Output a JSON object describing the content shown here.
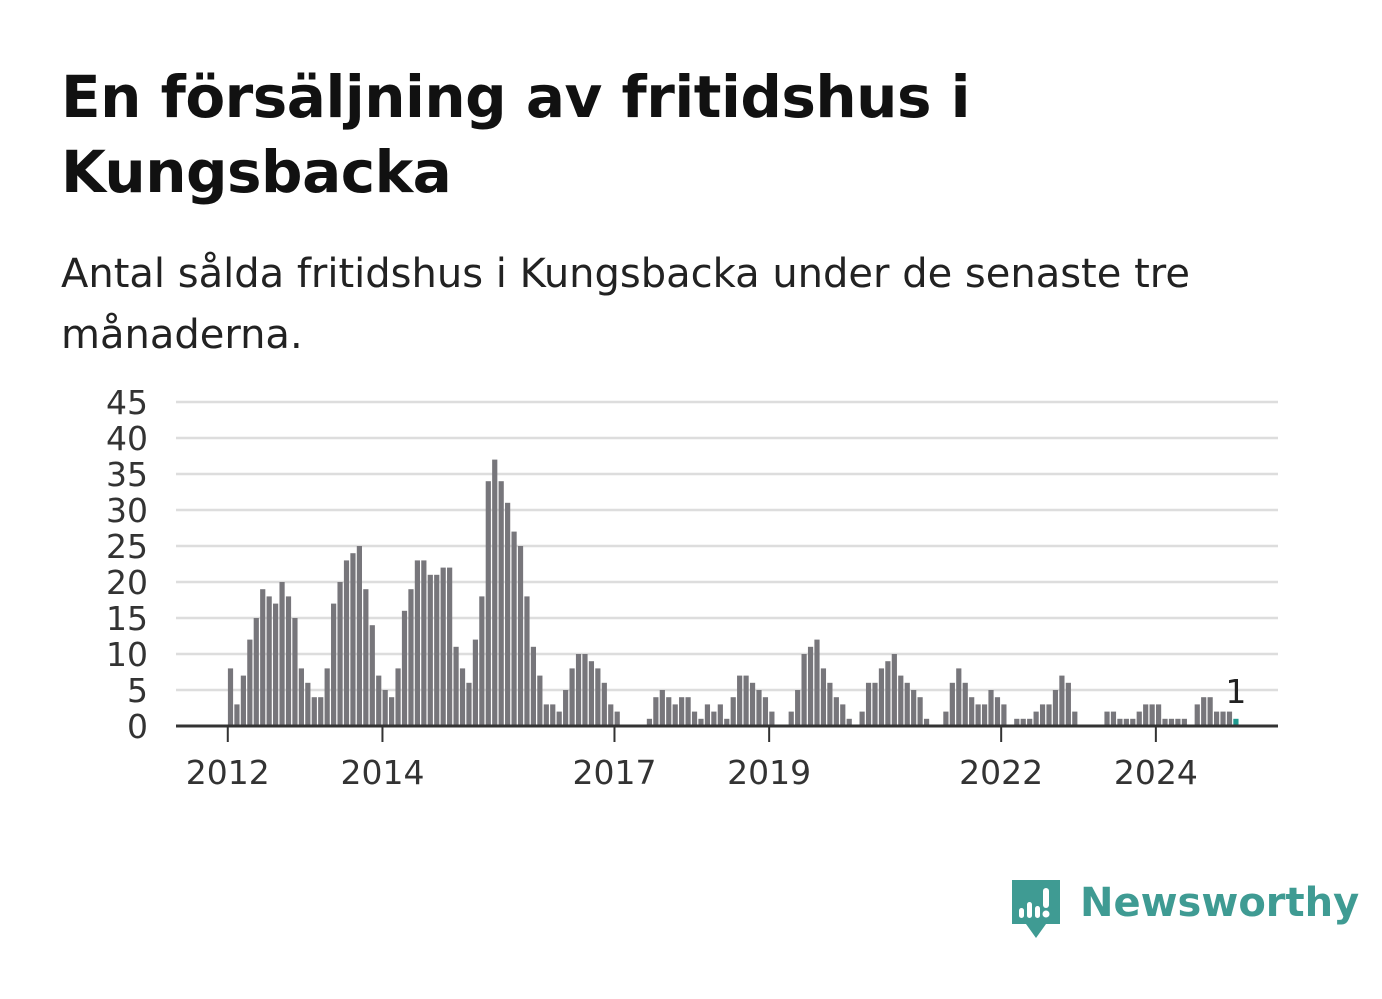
{
  "title": "En försäljning av fritidshus i Kungsbacka",
  "subtitle": "Antal sålda fritidshus i Kungsbacka under de senaste tre månaderna.",
  "logo": {
    "text": "Newsworthy",
    "color": "#3f9b93",
    "icon": "newsworthy-logo-icon"
  },
  "chart_data": {
    "type": "bar",
    "title": "",
    "xlabel": "",
    "ylabel": "",
    "ylim": [
      0,
      45
    ],
    "yticks": [
      0,
      5,
      10,
      15,
      20,
      25,
      30,
      35,
      40,
      45
    ],
    "xticks": [
      "2012",
      "2014",
      "2017",
      "2019",
      "2022",
      "2024"
    ],
    "grid": true,
    "bar_color": "#77767b",
    "highlight_color": "#1f9a8f",
    "annotation": "1",
    "categories": [
      "2012-01",
      "2012-02",
      "2012-03",
      "2012-04",
      "2012-05",
      "2012-06",
      "2012-07",
      "2012-08",
      "2012-09",
      "2012-10",
      "2012-11",
      "2012-12",
      "2013-01",
      "2013-02",
      "2013-03",
      "2013-04",
      "2013-05",
      "2013-06",
      "2013-07",
      "2013-08",
      "2013-09",
      "2013-10",
      "2013-11",
      "2013-12",
      "2014-01",
      "2014-02",
      "2014-03",
      "2014-04",
      "2014-05",
      "2014-06",
      "2014-07",
      "2014-08",
      "2014-09",
      "2014-10",
      "2014-11",
      "2014-12",
      "2015-01",
      "2015-02",
      "2015-03",
      "2015-04",
      "2015-05",
      "2015-06",
      "2015-07",
      "2015-08",
      "2015-09",
      "2015-10",
      "2015-11",
      "2015-12",
      "2016-01",
      "2016-02",
      "2016-03",
      "2016-04",
      "2016-05",
      "2016-06",
      "2016-07",
      "2016-08",
      "2016-09",
      "2016-10",
      "2016-11",
      "2016-12",
      "2017-01",
      "2017-02",
      "2017-03",
      "2017-04",
      "2017-05",
      "2017-06",
      "2017-07",
      "2017-08",
      "2017-09",
      "2017-10",
      "2017-11",
      "2017-12",
      "2018-01",
      "2018-02",
      "2018-03",
      "2018-04",
      "2018-05",
      "2018-06",
      "2018-07",
      "2018-08",
      "2018-09",
      "2018-10",
      "2018-11",
      "2018-12",
      "2019-01",
      "2019-02",
      "2019-03",
      "2019-04",
      "2019-05",
      "2019-06",
      "2019-07",
      "2019-08",
      "2019-09",
      "2019-10",
      "2019-11",
      "2019-12",
      "2020-01",
      "2020-02",
      "2020-03",
      "2020-04",
      "2020-05",
      "2020-06",
      "2020-07",
      "2020-08",
      "2020-09",
      "2020-10",
      "2020-11",
      "2020-12",
      "2021-01",
      "2021-02",
      "2021-03",
      "2021-04",
      "2021-05",
      "2021-06",
      "2021-07",
      "2021-08",
      "2021-09",
      "2021-10",
      "2021-11",
      "2021-12",
      "2022-01",
      "2022-02",
      "2022-03",
      "2022-04",
      "2022-05",
      "2022-06",
      "2022-07",
      "2022-08",
      "2022-09",
      "2022-10",
      "2022-11",
      "2022-12",
      "2023-01",
      "2023-02",
      "2023-03",
      "2023-04",
      "2023-05",
      "2023-06",
      "2023-07",
      "2023-08",
      "2023-09",
      "2023-10",
      "2023-11",
      "2023-12",
      "2024-01",
      "2024-02",
      "2024-03",
      "2024-04",
      "2024-05",
      "2024-06",
      "2024-07",
      "2024-08",
      "2024-09",
      "2024-10",
      "2024-11",
      "2024-12",
      "2025-01"
    ],
    "values": [
      8,
      3,
      7,
      12,
      15,
      19,
      18,
      17,
      20,
      18,
      15,
      8,
      6,
      4,
      4,
      8,
      17,
      20,
      23,
      24,
      25,
      19,
      14,
      7,
      5,
      4,
      8,
      16,
      19,
      23,
      23,
      21,
      21,
      22,
      22,
      11,
      8,
      6,
      12,
      18,
      34,
      37,
      34,
      31,
      27,
      25,
      18,
      11,
      7,
      3,
      3,
      2,
      5,
      8,
      10,
      10,
      9,
      8,
      6,
      3,
      2,
      0,
      0,
      0,
      0,
      1,
      4,
      5,
      4,
      3,
      4,
      4,
      2,
      1,
      3,
      2,
      3,
      1,
      4,
      7,
      7,
      6,
      5,
      4,
      2,
      0,
      0,
      2,
      5,
      10,
      11,
      12,
      8,
      6,
      4,
      3,
      1,
      0,
      2,
      6,
      6,
      8,
      9,
      10,
      7,
      6,
      5,
      4,
      1,
      0,
      0,
      2,
      6,
      8,
      6,
      4,
      3,
      3,
      5,
      4,
      3,
      0,
      1,
      1,
      1,
      2,
      3,
      3,
      5,
      7,
      6,
      2,
      0,
      0,
      0,
      0,
      2,
      2,
      1,
      1,
      1,
      2,
      3,
      3,
      3,
      1,
      1,
      1,
      1,
      0,
      3,
      4,
      4,
      2,
      2,
      2,
      1
    ]
  }
}
